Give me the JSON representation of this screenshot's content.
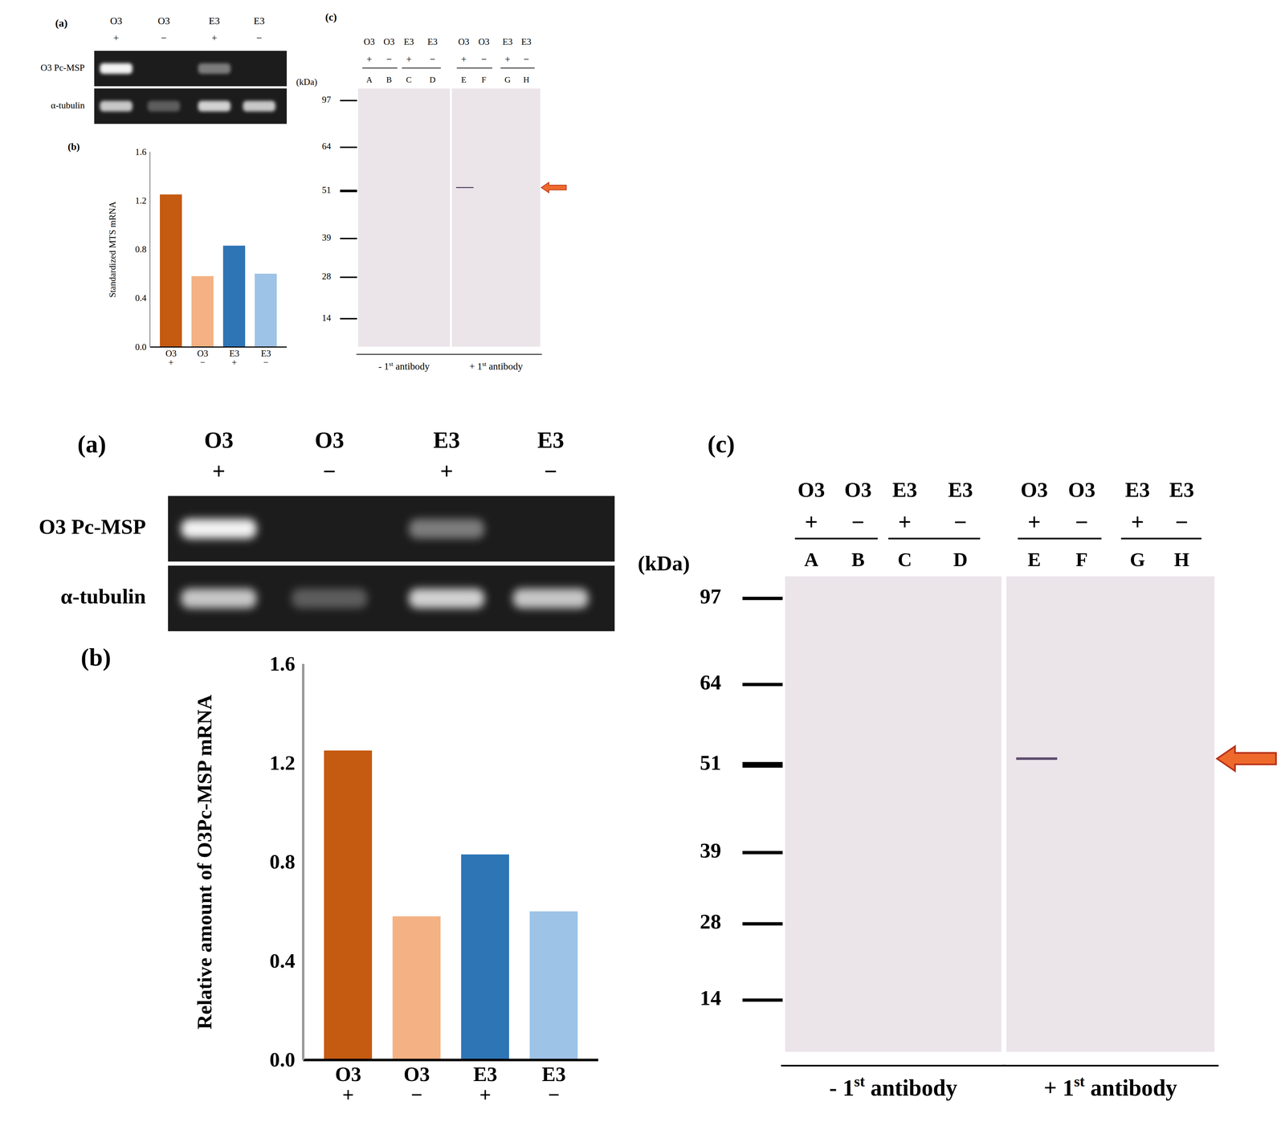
{
  "chart_data": [
    {
      "type": "bar",
      "title": "(b)",
      "categories": [
        "O3\n+",
        "O3\n−",
        "E3\n+",
        "E3\n−"
      ],
      "values": [
        1.25,
        0.58,
        0.83,
        0.6
      ],
      "colors": [
        "#c55a11",
        "#f4b183",
        "#2e75b6",
        "#9dc3e6"
      ],
      "y_label": "Standardized MTS mRNA",
      "ylim": [
        0,
        1.6
      ],
      "yticks": [
        {
          "value": 0,
          "label": "0.0"
        },
        {
          "value": 0.4,
          "label": "0.4"
        },
        {
          "value": 0.8,
          "label": "0.8"
        },
        {
          "value": 1.2,
          "label": "1.2"
        },
        {
          "value": 1.6,
          "label": "1.6"
        }
      ]
    },
    {
      "type": "bar",
      "title": "(b)",
      "categories": [
        "O3\n+",
        "O3\n−",
        "E3\n+",
        "E3\n−"
      ],
      "values": [
        1.25,
        0.58,
        0.83,
        0.6
      ],
      "colors": [
        "#c55a11",
        "#f4b183",
        "#2e75b6",
        "#9dc3e6"
      ],
      "y_label": "Relative amount of O3Pc-MSP mRNA",
      "ylim": [
        0,
        1.6
      ],
      "yticks": [
        {
          "value": 0,
          "label": "0.0"
        },
        {
          "value": 0.4,
          "label": "0.4"
        },
        {
          "value": 0.8,
          "label": "0.8"
        },
        {
          "value": 1.2,
          "label": "1.2"
        },
        {
          "value": 1.6,
          "label": "1.6"
        }
      ]
    }
  ],
  "figures": [
    {
      "panel_a": {
        "label": "(a)",
        "lanes": [
          {
            "name": "O3",
            "sign": "+"
          },
          {
            "name": "O3",
            "sign": "−"
          },
          {
            "name": "E3",
            "sign": "+"
          },
          {
            "name": "E3",
            "sign": "−"
          }
        ],
        "rows": [
          {
            "label": "O3 Pc-MSP",
            "intensity": [
              1,
              0,
              0.45,
              0
            ]
          },
          {
            "label": "α-tubulin",
            "intensity": [
              0.8,
              0.3,
              0.85,
              0.8
            ]
          }
        ]
      },
      "panel_c": {
        "label": "(c)",
        "unit": "(kDa)",
        "markers": [
          97,
          64,
          51,
          39,
          28,
          14
        ],
        "groups": [
          {
            "antibody": {
              "prefix": "- 1",
              "sup": "st",
              "suffix": " antibody"
            },
            "lanes": [
              {
                "name": "O3",
                "sign": "+",
                "letter": "A"
              },
              {
                "name": "O3",
                "sign": "−",
                "letter": "B"
              },
              {
                "name": "E3",
                "sign": "+",
                "letter": "C"
              },
              {
                "name": "E3",
                "sign": "−",
                "letter": "D"
              }
            ]
          },
          {
            "antibody": {
              "prefix": "+ 1",
              "sup": "st",
              "suffix": " antibody"
            },
            "lanes": [
              {
                "name": "O3",
                "sign": "+",
                "letter": "E"
              },
              {
                "name": "O3",
                "sign": "−",
                "letter": "F"
              },
              {
                "name": "E3",
                "sign": "+",
                "letter": "G"
              },
              {
                "name": "E3",
                "sign": "−",
                "letter": "H"
              }
            ]
          }
        ],
        "band": {
          "lane": "E",
          "kDa": 52
        }
      }
    },
    {
      "panel_a": {
        "label": "(a)",
        "lanes": [
          {
            "name": "O3",
            "sign": "+"
          },
          {
            "name": "O3",
            "sign": "−"
          },
          {
            "name": "E3",
            "sign": "+"
          },
          {
            "name": "E3",
            "sign": "−"
          }
        ],
        "rows": [
          {
            "label": "O3 Pc-MSP",
            "intensity": [
              1,
              0,
              0.45,
              0
            ]
          },
          {
            "label": "α-tubulin",
            "intensity": [
              0.8,
              0.3,
              0.85,
              0.8
            ]
          }
        ]
      },
      "panel_c": {
        "label": "(c)",
        "unit": "(kDa)",
        "markers": [
          97,
          64,
          51,
          39,
          28,
          14
        ],
        "groups": [
          {
            "antibody": {
              "prefix": "- 1",
              "sup": "st",
              "suffix": " antibody"
            },
            "lanes": [
              {
                "name": "O3",
                "sign": "+",
                "letter": "A"
              },
              {
                "name": "O3",
                "sign": "−",
                "letter": "B"
              },
              {
                "name": "E3",
                "sign": "+",
                "letter": "C"
              },
              {
                "name": "E3",
                "sign": "−",
                "letter": "D"
              }
            ]
          },
          {
            "antibody": {
              "prefix": "+ 1",
              "sup": "st",
              "suffix": " antibody"
            },
            "lanes": [
              {
                "name": "O3",
                "sign": "+",
                "letter": "E"
              },
              {
                "name": "O3",
                "sign": "−",
                "letter": "F"
              },
              {
                "name": "E3",
                "sign": "+",
                "letter": "G"
              },
              {
                "name": "E3",
                "sign": "−",
                "letter": "H"
              }
            ]
          }
        ],
        "band": {
          "lane": "E",
          "kDa": 52
        }
      }
    }
  ]
}
